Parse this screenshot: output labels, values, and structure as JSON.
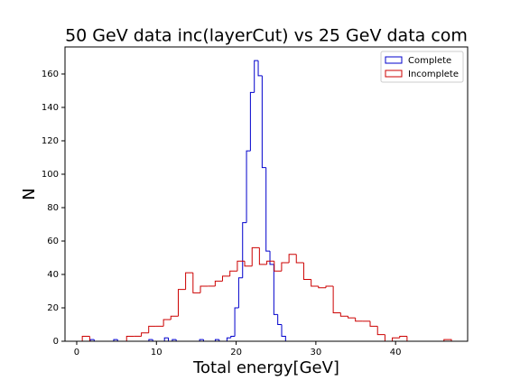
{
  "chart_data": {
    "type": "histogram",
    "title": "50 GeV data inc(layerCut) vs 25 GeV data com",
    "x_label": "Total energy[GeV]",
    "y_label": "N",
    "xlim": [
      -1.47,
      49.04
    ],
    "ylim": [
      0,
      176.2
    ],
    "xticks": [
      0,
      10,
      20,
      30,
      40
    ],
    "yticks": [
      0,
      20,
      40,
      60,
      80,
      100,
      120,
      140,
      160
    ],
    "legend": "upper right",
    "series": [
      {
        "name": "Complete",
        "color": "#0000cc",
        "bins": [
          1.7,
          2.19,
          2.68,
          3.17,
          3.66,
          4.15,
          4.64,
          5.13,
          5.62,
          6.11,
          6.6,
          7.09,
          7.58,
          8.07,
          8.56,
          9.05,
          9.54,
          10.03,
          10.52,
          11.01,
          11.5,
          11.99,
          12.48,
          12.97,
          13.46,
          13.95,
          14.44,
          14.93,
          15.42,
          15.91,
          16.4,
          16.89,
          17.38,
          17.87,
          18.36,
          18.85,
          19.34,
          19.83,
          20.32,
          20.81,
          21.3,
          21.79,
          22.28,
          22.77,
          23.26,
          23.75,
          24.24,
          24.73,
          25.22,
          25.71,
          26.2
        ],
        "values": [
          1,
          0,
          0,
          0,
          0,
          0,
          1,
          0,
          0,
          0,
          0,
          0,
          0,
          0,
          0,
          1,
          0,
          0,
          0,
          2,
          0,
          1,
          0,
          0,
          0,
          0,
          0,
          0,
          1,
          0,
          0,
          0,
          1,
          0,
          0,
          2,
          3,
          20,
          38,
          71,
          114,
          149,
          168,
          159,
          104,
          54,
          46,
          16,
          10,
          3
        ]
      },
      {
        "name": "Incomplete",
        "color": "#cc0000",
        "bins": [
          0.7,
          1.63,
          2.55,
          3.48,
          4.4,
          5.33,
          6.26,
          7.18,
          8.11,
          9.03,
          9.96,
          10.89,
          11.81,
          12.74,
          13.66,
          14.59,
          15.52,
          16.44,
          17.37,
          18.29,
          19.22,
          20.15,
          21.07,
          22.0,
          22.92,
          23.85,
          24.78,
          25.7,
          26.63,
          27.55,
          28.48,
          29.41,
          30.33,
          31.26,
          32.18,
          33.11,
          34.04,
          34.96,
          35.89,
          36.81,
          37.74,
          38.67,
          39.59,
          40.52,
          41.44,
          42.37,
          43.3,
          44.22,
          45.15,
          46.07,
          47.0
        ],
        "values": [
          3,
          0,
          0,
          0,
          0,
          0,
          3,
          3,
          5,
          9,
          9,
          13,
          15,
          31,
          41,
          29,
          33,
          33,
          36,
          39,
          42,
          48,
          45,
          56,
          46,
          48,
          42,
          47,
          52,
          47,
          37,
          33,
          32,
          33,
          17,
          15,
          14,
          12,
          12,
          9,
          4,
          0,
          2,
          3,
          0,
          0,
          0,
          0,
          0,
          1
        ]
      }
    ]
  }
}
